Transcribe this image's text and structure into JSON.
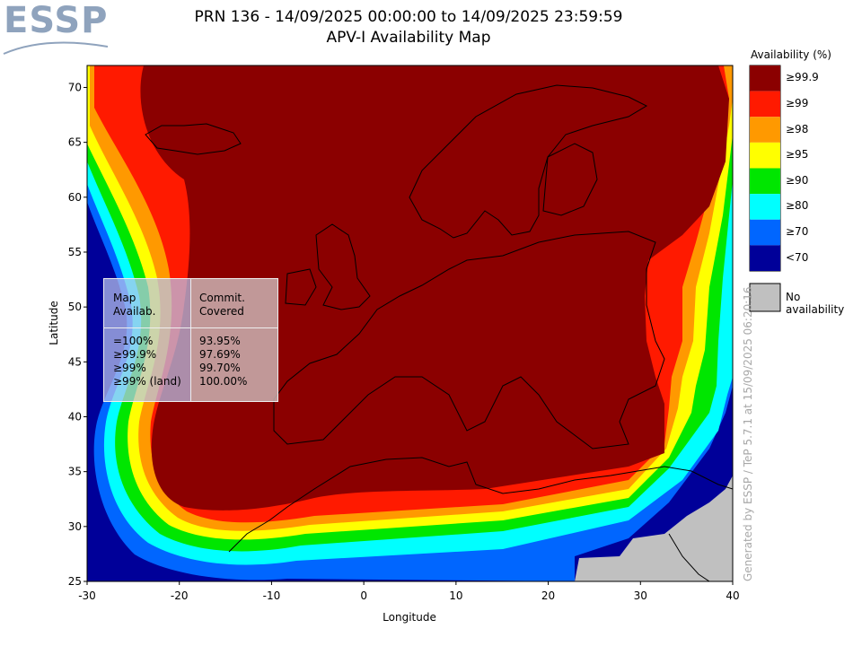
{
  "logo": {
    "text": "ESSP"
  },
  "title": {
    "line1": "PRN 136 - 14/09/2025 00:00:00 to 14/09/2025 23:59:59",
    "line2": "APV-I Availability Map"
  },
  "axes": {
    "xlabel": "Longitude",
    "ylabel": "Latitude",
    "xticks": [
      "-30",
      "-20",
      "-10",
      "0",
      "10",
      "20",
      "30",
      "40"
    ],
    "yticks": [
      "25",
      "30",
      "35",
      "40",
      "45",
      "50",
      "55",
      "60",
      "65",
      "70"
    ],
    "xlim": [
      -30,
      40
    ],
    "ylim": [
      25,
      72
    ]
  },
  "legend": {
    "title": "Availability (%)",
    "items": [
      {
        "label": "≥99.9",
        "color": "#8b0000"
      },
      {
        "label": "≥99",
        "color": "#ff1a00"
      },
      {
        "label": "≥98",
        "color": "#ff9900"
      },
      {
        "label": "≥95",
        "color": "#ffff00"
      },
      {
        "label": "≥90",
        "color": "#00e600"
      },
      {
        "label": "≥80",
        "color": "#00ffff"
      },
      {
        "label": "≥70",
        "color": "#0066ff"
      },
      {
        "label": "<70",
        "color": "#000099"
      }
    ],
    "no_availability": {
      "label": "No availability",
      "color": "#c0c0c0"
    }
  },
  "stats": {
    "header_col1": [
      "Map",
      "Availab."
    ],
    "header_col2": [
      "Commit.",
      "Covered"
    ],
    "rows": [
      {
        "level": "=100%",
        "covered": "93.95%"
      },
      {
        "level": "≥99.9%",
        "covered": "97.69%"
      },
      {
        "level": "≥99%",
        "covered": "99.70%"
      },
      {
        "level": "≥99% (land)",
        "covered": "100.00%"
      }
    ]
  },
  "watermark": "Generated by ESSP / TeP 5.7.1 at 15/09/2025 06:20:16"
}
